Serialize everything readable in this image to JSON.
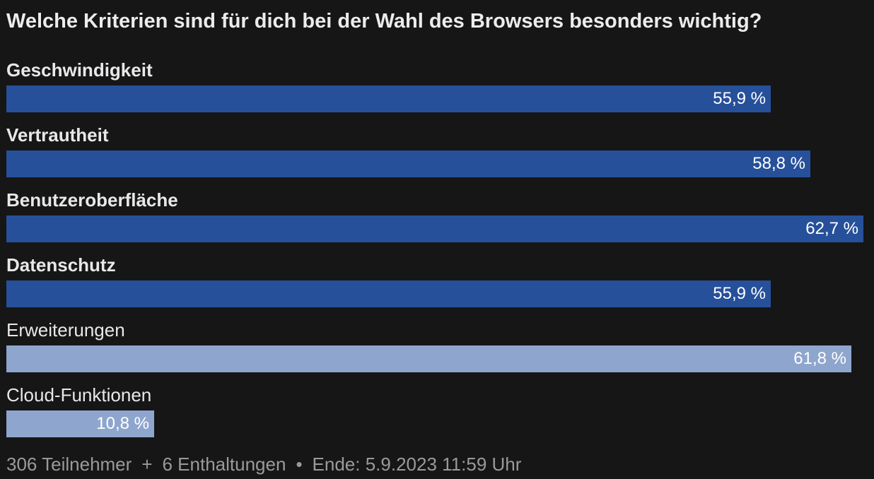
{
  "poll": {
    "title": "Welche Kriterien sind für dich bei der Wahl des Browsers besonders wichtig?",
    "options": [
      {
        "label": "Geschwindigkeit",
        "value_text": "55,9 %",
        "percent": 55.9,
        "selected": true
      },
      {
        "label": "Vertrautheit",
        "value_text": "58,8 %",
        "percent": 58.8,
        "selected": true
      },
      {
        "label": "Benutzeroberfläche",
        "value_text": "62,7 %",
        "percent": 62.7,
        "selected": true
      },
      {
        "label": "Datenschutz",
        "value_text": "55,9 %",
        "percent": 55.9,
        "selected": true
      },
      {
        "label": "Erweiterungen",
        "value_text": "61,8 %",
        "percent": 61.8,
        "selected": false
      },
      {
        "label": "Cloud-Funktionen",
        "value_text": "10,8 %",
        "percent": 10.8,
        "selected": false
      }
    ],
    "max_percent": 62.7
  },
  "footer": {
    "participants": "306 Teilnehmer",
    "sep1": "+",
    "abstentions": "6 Enthaltungen",
    "sep2": "•",
    "end": "Ende: 5.9.2023 11:59 Uhr"
  },
  "colors": {
    "selected_bar": "#27509a",
    "unselected_bar": "#8ea6cd",
    "background": "#161616"
  }
}
